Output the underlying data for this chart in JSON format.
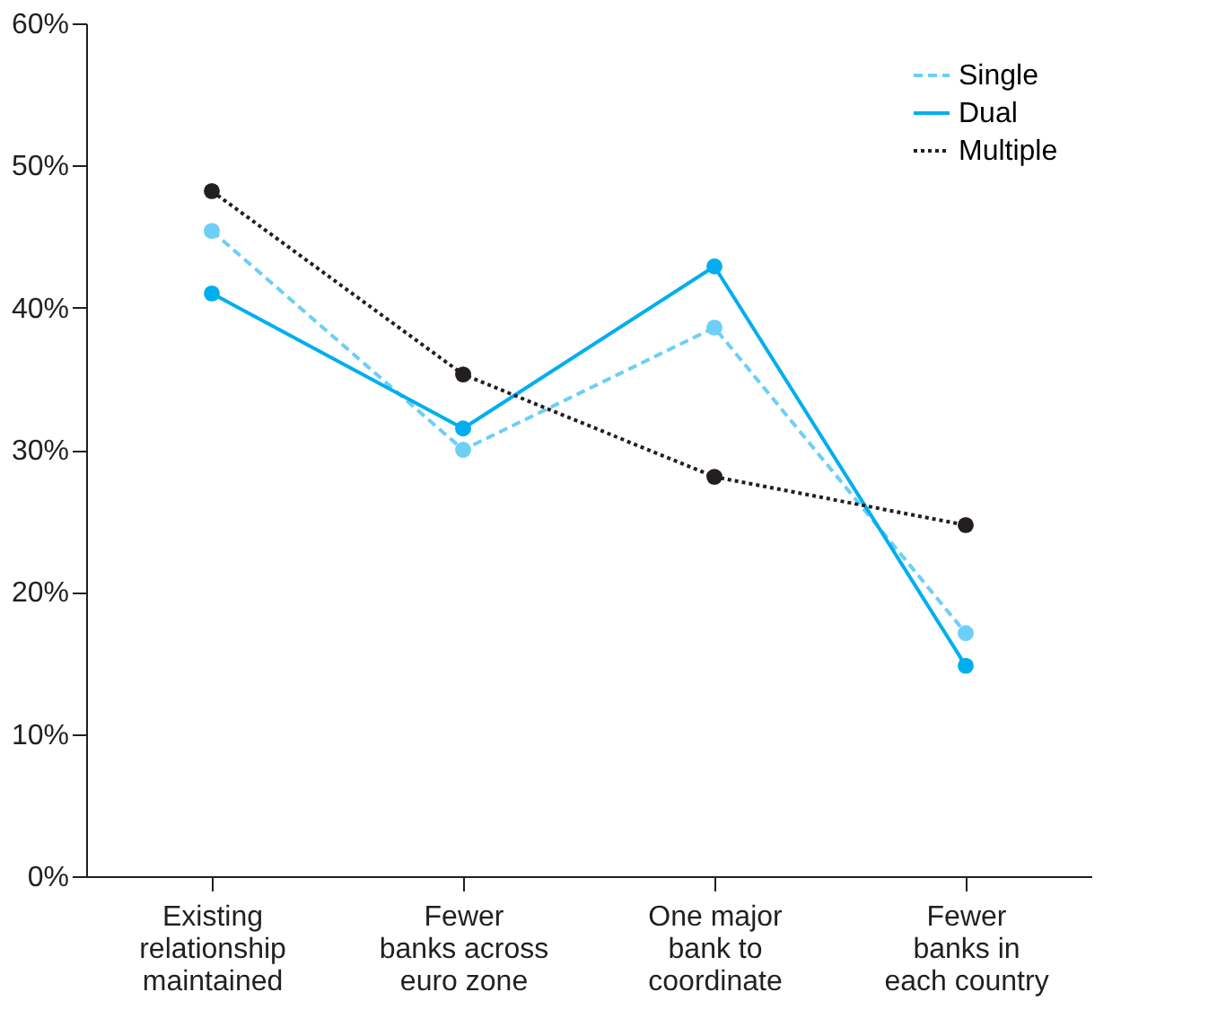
{
  "chart_data": {
    "type": "line",
    "categories": [
      "Existing\nrelationship\nmaintained",
      "Fewer\nbanks across\neuro zone",
      "One major\nbank to\ncoordinate",
      "Fewer\nbanks in\neach country"
    ],
    "series": [
      {
        "name": "Single",
        "color": "#6dcff6",
        "line_style": "dashed",
        "values": [
          45.4,
          30.0,
          38.6,
          17.1
        ]
      },
      {
        "name": "Dual",
        "color": "#00aeef",
        "line_style": "solid",
        "values": [
          41.0,
          31.5,
          42.9,
          14.8
        ]
      },
      {
        "name": "Multiple",
        "color": "#231f20",
        "line_style": "dotted",
        "values": [
          48.2,
          35.3,
          28.1,
          24.7
        ]
      }
    ],
    "ylim": [
      0,
      60
    ],
    "yticks": [
      {
        "value": 0,
        "label": "0%"
      },
      {
        "value": 10,
        "label": "10%"
      },
      {
        "value": 20,
        "label": "20%"
      },
      {
        "value": 30,
        "label": "30%"
      },
      {
        "value": 40,
        "label": "40%"
      },
      {
        "value": 50,
        "label": "50%"
      },
      {
        "value": 60,
        "label": "60%"
      }
    ],
    "grid": false,
    "legend": "top right",
    "marker": "circle"
  }
}
